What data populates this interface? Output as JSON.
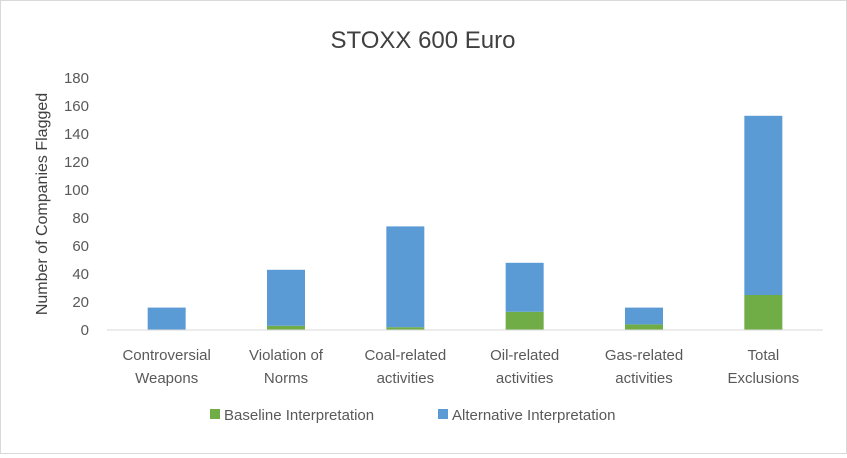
{
  "chart_data": {
    "type": "bar",
    "stacked": true,
    "title": "STOXX 600 Euro",
    "ylabel": "Number of Companies Flagged",
    "xlabel": "",
    "ylim": [
      0,
      180
    ],
    "yticks": [
      0,
      20,
      40,
      60,
      80,
      100,
      120,
      140,
      160,
      180
    ],
    "categories": [
      [
        "Controversial",
        "Weapons"
      ],
      [
        "Violation of",
        "Norms"
      ],
      [
        "Coal-related",
        "activities"
      ],
      [
        "Oil-related",
        "activities"
      ],
      [
        "Gas-related",
        "activities"
      ],
      [
        "Total",
        "Exclusions"
      ]
    ],
    "series": [
      {
        "name": "Baseline Interpretation",
        "color": "#70ad47",
        "values": [
          0,
          3,
          2,
          13,
          4,
          25
        ]
      },
      {
        "name": "Alternative Interpretation",
        "color": "#5b9bd5",
        "values": [
          16,
          40,
          72,
          35,
          12,
          128
        ]
      }
    ],
    "grid": false,
    "legend": "bottom"
  }
}
